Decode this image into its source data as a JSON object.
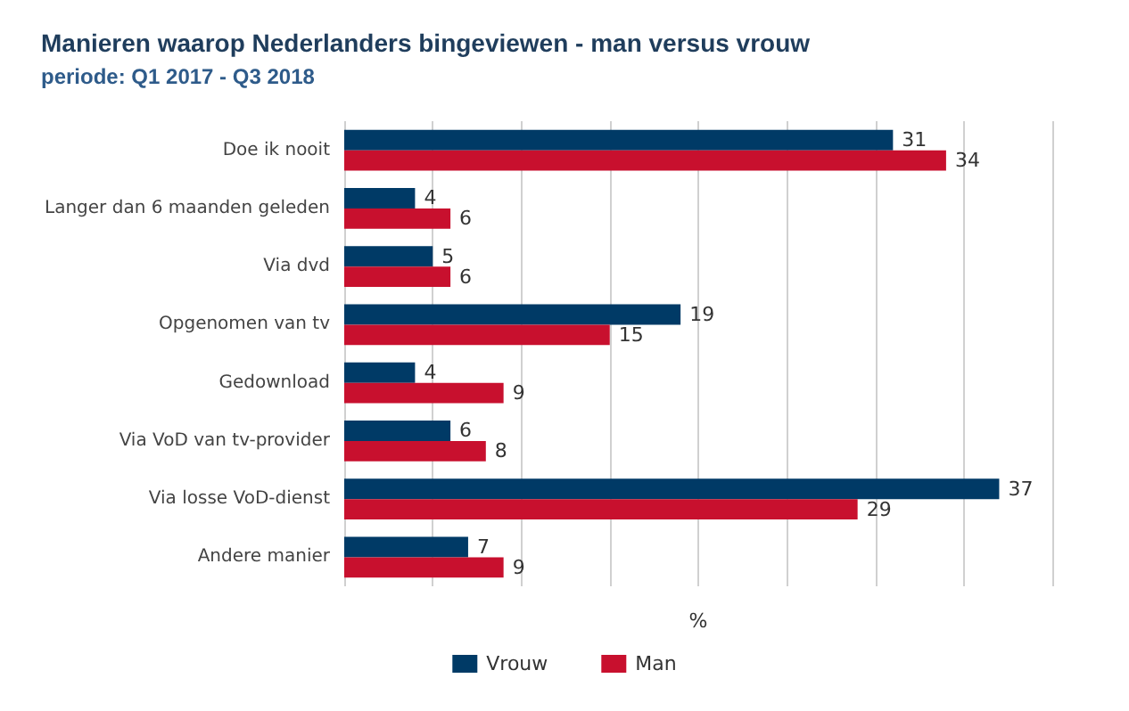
{
  "chart_data": {
    "type": "bar",
    "orientation": "horizontal",
    "title": "Manieren waarop Nederlanders bingeviewen - man versus vrouw",
    "subtitle": "periode: Q1 2017 - Q3 2018",
    "xlabel": "%",
    "categories": [
      "Doe ik nooit",
      "Langer dan 6 maanden geleden",
      "Via dvd",
      "Opgenomen van tv",
      "Gedownload",
      "Via VoD van tv-provider",
      "Via losse VoD-dienst",
      "Andere manier"
    ],
    "series": [
      {
        "name": "Vrouw",
        "color": "#003a66",
        "values": [
          31,
          4,
          5,
          19,
          4,
          6,
          37,
          7
        ]
      },
      {
        "name": "Man",
        "color": "#c8102e",
        "values": [
          34,
          6,
          6,
          15,
          9,
          8,
          29,
          9
        ]
      }
    ],
    "xlim": [
      0,
      40
    ],
    "xticks": [
      {
        "value": 0,
        "label": null
      },
      {
        "value": 5,
        "label": null
      },
      {
        "value": 10,
        "label": null
      },
      {
        "value": 15,
        "label": null
      },
      {
        "value": 20,
        "label": null
      },
      {
        "value": 25,
        "label": null
      },
      {
        "value": 30,
        "label": null
      },
      {
        "value": 35,
        "label": null
      },
      {
        "value": 40,
        "label": null
      }
    ],
    "tick_labels": "y",
    "grid": "x",
    "legend": "bottom",
    "data_labels": true
  }
}
